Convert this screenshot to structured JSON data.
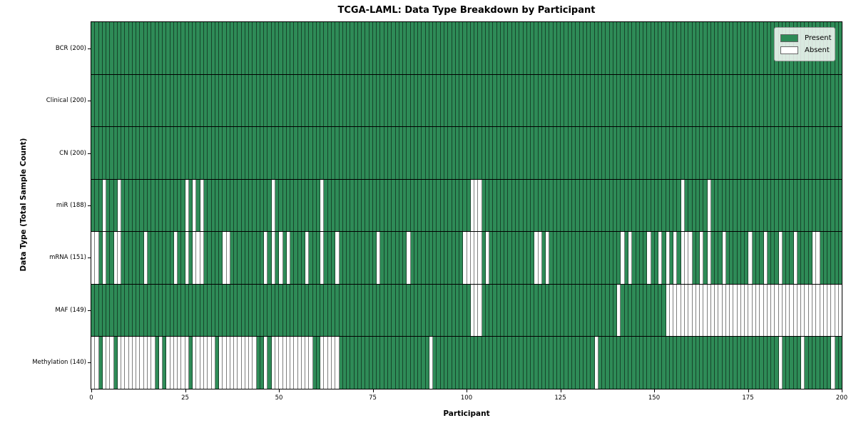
{
  "chart_data": {
    "type": "heatmap",
    "title": "TCGA-LAML: Data Type Breakdown by Participant",
    "xlabel": "Participant",
    "ylabel": "Data Type (Total Sample Count)",
    "n_participants": 200,
    "x_ticks": [
      0,
      25,
      50,
      75,
      100,
      125,
      150,
      175,
      200
    ],
    "xlim": [
      0,
      200
    ],
    "grid": false,
    "legend": {
      "position": "upper right",
      "present_label": "Present",
      "absent_label": "Absent"
    },
    "colors": {
      "present": "#2e8b57",
      "absent": "#ffffff",
      "cell_edge": "rgba(0,0,0,0.5)",
      "row_divider": "#000000"
    },
    "rows": [
      {
        "key": "bcr",
        "name": "BCR",
        "total_samples": 200,
        "absent_columns": []
      },
      {
        "key": "clinical",
        "name": "Clinical",
        "total_samples": 200,
        "absent_columns": []
      },
      {
        "key": "cn",
        "name": "CN",
        "total_samples": 200,
        "absent_columns": []
      },
      {
        "key": "mir",
        "name": "miR",
        "total_samples": 188,
        "absent_columns": [
          3,
          7,
          25,
          27,
          29,
          48,
          61,
          101,
          102,
          103,
          157,
          164
        ]
      },
      {
        "key": "mrna",
        "name": "mRNA",
        "total_samples": 151,
        "absent_columns": [
          0,
          1,
          3,
          6,
          7,
          14,
          22,
          25,
          27,
          28,
          29,
          35,
          36,
          46,
          48,
          50,
          52,
          57,
          61,
          65,
          76,
          84,
          99,
          100,
          101,
          102,
          103,
          105,
          118,
          119,
          121,
          141,
          143,
          148,
          151,
          153,
          155,
          157,
          158,
          159,
          162,
          164,
          168,
          175,
          179,
          183,
          187,
          192,
          193
        ]
      },
      {
        "key": "maf",
        "name": "MAF",
        "total_samples": 149,
        "absent_columns": [
          101,
          102,
          103,
          140,
          153,
          154,
          155,
          156,
          157,
          158,
          159,
          160,
          161,
          162,
          163,
          164,
          165,
          166,
          167,
          168,
          169,
          170,
          171,
          172,
          173,
          174,
          175,
          176,
          177,
          178,
          179,
          180,
          181,
          182,
          183,
          184,
          185,
          186,
          187,
          188,
          189,
          190,
          191,
          192,
          193,
          194,
          195,
          196,
          197,
          198,
          199
        ]
      },
      {
        "key": "methylation",
        "name": "Methylation",
        "total_samples": 140,
        "absent_columns": [
          0,
          1,
          3,
          4,
          5,
          7,
          8,
          9,
          10,
          11,
          12,
          13,
          14,
          15,
          16,
          18,
          20,
          21,
          22,
          23,
          24,
          25,
          27,
          28,
          29,
          30,
          31,
          32,
          34,
          35,
          36,
          37,
          38,
          39,
          40,
          41,
          42,
          43,
          46,
          48,
          49,
          50,
          51,
          52,
          53,
          54,
          55,
          56,
          57,
          58,
          61,
          62,
          63,
          64,
          65,
          90,
          134,
          183,
          189,
          197
        ]
      }
    ]
  }
}
